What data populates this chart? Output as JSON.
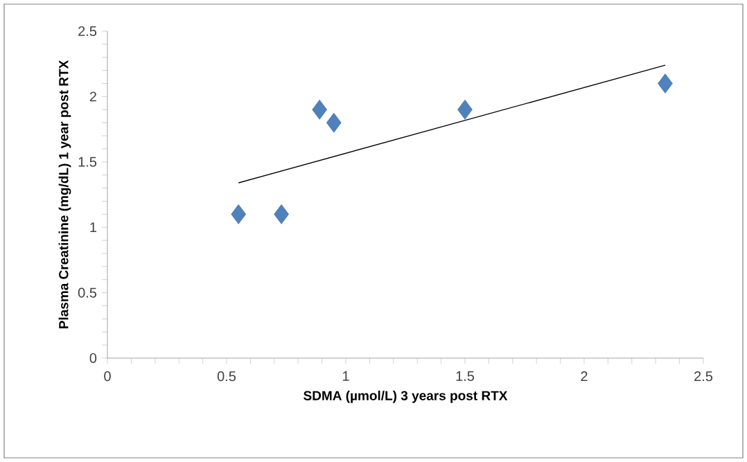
{
  "chart_data": {
    "type": "scatter",
    "xlabel": "SDMA (µmol/L) 3 years post RTX",
    "ylabel": "Plasma Creatinine (mg/dL) 1 year post RTX",
    "xlim": [
      0,
      2.5
    ],
    "ylim": [
      0,
      2.5
    ],
    "xticks": [
      0,
      0.5,
      1,
      1.5,
      2,
      2.5
    ],
    "yticks": [
      0,
      0.5,
      1,
      1.5,
      2,
      2.5
    ],
    "series": [
      {
        "marker": "diamond",
        "color": "#4f81bd",
        "x": [
          0.55,
          0.73,
          0.89,
          0.95,
          1.5,
          2.34
        ],
        "values": [
          1.1,
          1.1,
          1.9,
          1.8,
          1.9,
          2.1
        ]
      },
      {
        "type": "line",
        "marker": "none",
        "color": "#000000",
        "x": [
          0.55,
          2.34
        ],
        "values": [
          1.34,
          2.24
        ]
      }
    ]
  }
}
